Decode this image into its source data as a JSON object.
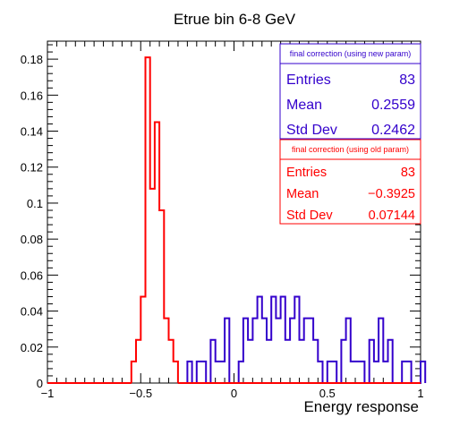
{
  "chart_data": {
    "type": "histogram",
    "title": "Etrue bin 6-8 GeV",
    "xlabel": "Energy response",
    "ylabel": "",
    "xlim": [
      -1,
      1
    ],
    "ylim": [
      0,
      0.19
    ],
    "bin_width": 0.025,
    "x_ticks": [
      -1,
      -0.5,
      0,
      0.5,
      1
    ],
    "x_tick_labels": [
      "−1",
      "−0.5",
      "0",
      "0.5",
      "1"
    ],
    "y_ticks": [
      0,
      0.02,
      0.04,
      0.06,
      0.08,
      0.1,
      0.12,
      0.14,
      0.16,
      0.18
    ],
    "y_tick_labels": [
      "0",
      "0.02",
      "0.04",
      "0.06",
      "0.08",
      "0.1",
      "0.12",
      "0.14",
      "0.16",
      "0.18"
    ],
    "series": [
      {
        "name": "final correction (using new param)",
        "color": "#3300cc",
        "x_start": -0.3,
        "values": [
          0,
          0,
          0.012,
          0,
          0.012,
          0.012,
          0,
          0.024,
          0.012,
          0.012,
          0.036,
          0,
          0,
          0.012,
          0.036,
          0.024,
          0.036,
          0.048,
          0.036,
          0.024,
          0.048,
          0.036,
          0.048,
          0.024,
          0.036,
          0.048,
          0.024,
          0.036,
          0.036,
          0.024,
          0.012,
          0,
          0.012,
          0.012,
          0,
          0.024,
          0.036,
          0.012,
          0.012,
          0.012,
          0,
          0.024,
          0.012,
          0.036,
          0.012,
          0.024,
          0,
          0,
          0.012,
          0.012,
          0,
          0,
          0.012
        ]
      },
      {
        "name": "final correction (using old param)",
        "color": "#ff0000",
        "x_start": -0.55,
        "values": [
          0.012,
          0.024,
          0.048,
          0.181,
          0.108,
          0.145,
          0.096,
          0.036,
          0.024,
          0.012
        ]
      }
    ],
    "stats_boxes": [
      {
        "title": "final correction (using new param)",
        "color": "#3300cc",
        "rows": [
          {
            "label": "Entries",
            "value": "83"
          },
          {
            "label": "Mean",
            "value": "0.2559"
          },
          {
            "label": "Std Dev",
            "value": "0.2462"
          }
        ]
      },
      {
        "title": "final correction (using old param)",
        "color": "#ff0000",
        "rows": [
          {
            "label": "Entries",
            "value": "83"
          },
          {
            "label": "Mean",
            "value": "−0.3925"
          },
          {
            "label": "Std Dev",
            "value": "0.07144"
          }
        ]
      }
    ]
  }
}
